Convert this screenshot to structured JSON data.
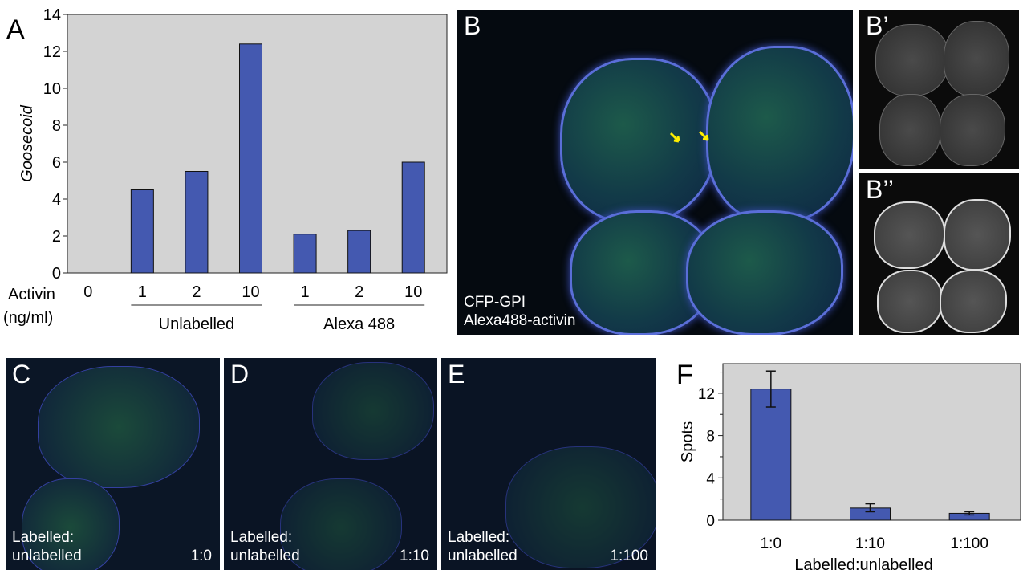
{
  "panels": {
    "A": {
      "letter": "A"
    },
    "B": {
      "letter": "B",
      "caption_line1": "CFP-GPI",
      "caption_line2": "Alexa488-activin"
    },
    "B1": {
      "letter": "B’"
    },
    "B2": {
      "letter": "B’’"
    },
    "C": {
      "letter": "C",
      "caption_line1": "Labelled:",
      "caption_line2": "unlabelled",
      "ratio": "1:0"
    },
    "D": {
      "letter": "D",
      "caption_line1": "Labelled:",
      "caption_line2": "unlabelled",
      "ratio": "1:10"
    },
    "E": {
      "letter": "E",
      "caption_line1": "Labelled:",
      "caption_line2": "unlabelled",
      "ratio": "1:100"
    },
    "F": {
      "letter": "F"
    }
  },
  "colors": {
    "bar": "#4459b0",
    "plot_bg": "#d3d3d3",
    "arrow": "#ffee00"
  },
  "chart_data": [
    {
      "type": "bar",
      "ylabel": "Goosecoid",
      "ylim": [
        0,
        14
      ],
      "yticks": [
        0,
        2,
        4,
        6,
        8,
        10,
        12,
        14
      ],
      "row_label_line1": "Activin",
      "row_label_line2": "(ng/ml)",
      "categories": [
        "0",
        "1",
        "2",
        "10",
        "1",
        "2",
        "10"
      ],
      "values": [
        0,
        4.5,
        5.5,
        12.4,
        2.1,
        2.3,
        6.0
      ],
      "groups": [
        {
          "label": "Unlabelled",
          "members": [
            1,
            2,
            3
          ]
        },
        {
          "label": "Alexa 488",
          "members": [
            4,
            5,
            6
          ]
        }
      ],
      "grid": false
    },
    {
      "type": "bar",
      "ylabel": "Spots",
      "xlabel": "Labelled:unlabelled",
      "ylim": [
        0,
        14.8
      ],
      "yticks": [
        0,
        4,
        8,
        12
      ],
      "minor_yticks": [
        2,
        6,
        10,
        14
      ],
      "categories": [
        "1:0",
        "1:10",
        "1:100"
      ],
      "values": [
        12.4,
        1.15,
        0.65
      ],
      "error_low": [
        10.7,
        0.8,
        0.5
      ],
      "error_high": [
        14.1,
        1.55,
        0.8
      ],
      "grid": false
    }
  ]
}
